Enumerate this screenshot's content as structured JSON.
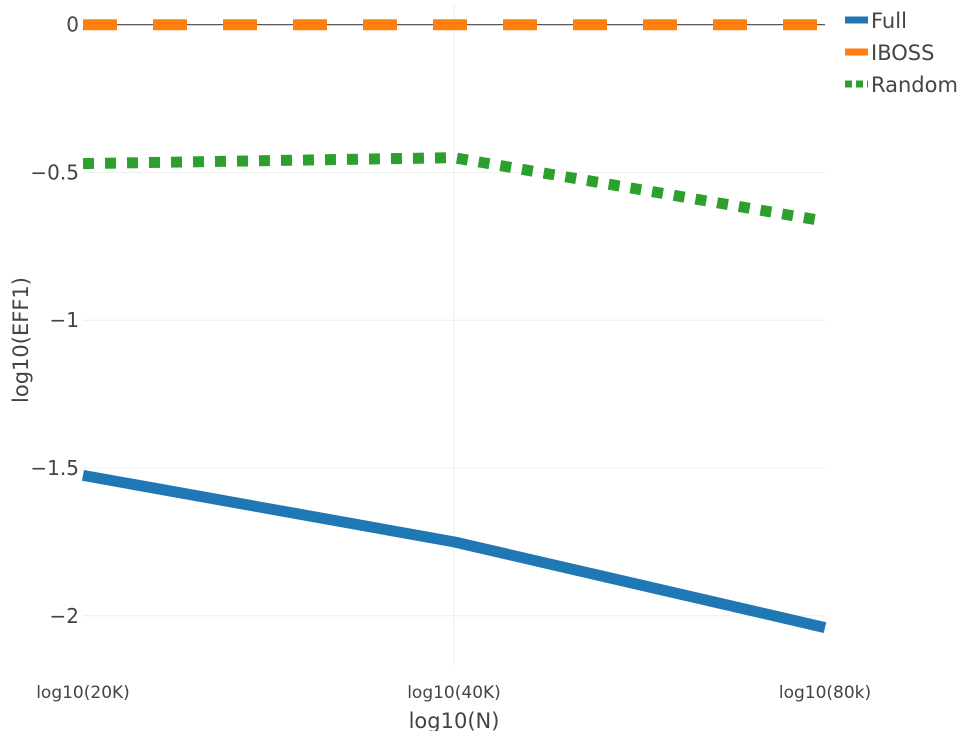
{
  "chart_data": {
    "type": "line",
    "title": "",
    "xlabel": "log10(N)",
    "ylabel": "log10(EFF1)",
    "categories": [
      "log10(20K)",
      "log10(40K)",
      "log10(80k)"
    ],
    "ylim": [
      -2.17,
      0.07
    ],
    "yticks": [
      {
        "value": 0,
        "label": "0"
      },
      {
        "value": -0.5,
        "label": "−0.5"
      },
      {
        "value": -1,
        "label": "−1"
      },
      {
        "value": -1.5,
        "label": "−1.5"
      },
      {
        "value": -2,
        "label": "−2"
      }
    ],
    "grid": true,
    "legend_position": "top-right",
    "series": [
      {
        "name": "Full",
        "values": [
          -1.525,
          -1.75,
          -2.04
        ],
        "color": "#1f77b4",
        "style": "solid"
      },
      {
        "name": "IBOSS",
        "values": [
          0,
          0,
          0
        ],
        "color": "#ff7f0e",
        "style": "dash"
      },
      {
        "name": "Random",
        "values": [
          -0.47,
          -0.45,
          -0.665
        ],
        "color": "#2ca02c",
        "style": "dot"
      }
    ]
  }
}
